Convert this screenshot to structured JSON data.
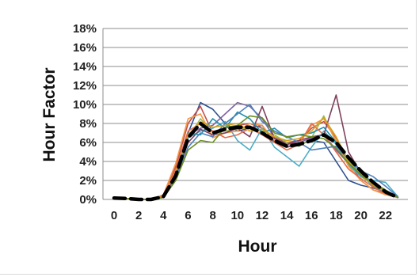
{
  "chart_data": {
    "type": "line",
    "xlabel": "Hour",
    "ylabel": "Hour Factor",
    "x": [
      0,
      1,
      2,
      3,
      4,
      5,
      6,
      7,
      8,
      9,
      10,
      11,
      12,
      13,
      14,
      15,
      16,
      17,
      18,
      19,
      20,
      21,
      22,
      23
    ],
    "x_tick_labels": [
      "0",
      "2",
      "4",
      "6",
      "8",
      "10",
      "12",
      "14",
      "16",
      "18",
      "20",
      "22"
    ],
    "y_tick_labels": [
      "0%",
      "2%",
      "4%",
      "6%",
      "8%",
      "10%",
      "12%",
      "14%",
      "16%",
      "18%"
    ],
    "ylim": [
      0,
      18
    ],
    "grid": "horizontal",
    "legend": "none",
    "series": [
      {
        "color": "#2e4f8f",
        "style": "solid",
        "values": [
          0.1,
          0.1,
          0,
          0,
          0.3,
          2.5,
          7.0,
          10.2,
          9.5,
          8.0,
          7.2,
          7.5,
          7.8,
          6.0,
          5.5,
          5.8,
          6.2,
          6.0,
          4.0,
          2.0,
          1.5,
          1.2,
          0.8,
          0.2
        ]
      },
      {
        "color": "#c0504d",
        "style": "solid",
        "values": [
          0.1,
          0.1,
          0,
          0,
          0.3,
          3.5,
          8.0,
          9.8,
          7.0,
          7.5,
          7.8,
          8.0,
          7.5,
          6.5,
          6.0,
          6.2,
          7.5,
          8.2,
          6.5,
          4.0,
          2.0,
          1.0,
          0.6,
          0.2
        ]
      },
      {
        "color": "#9bbb59",
        "style": "solid",
        "values": [
          0.1,
          0.1,
          0,
          0,
          0.3,
          2.8,
          6.5,
          8.5,
          7.0,
          7.2,
          7.4,
          7.6,
          7.2,
          6.8,
          6.0,
          5.6,
          6.5,
          8.8,
          6.0,
          3.8,
          2.4,
          1.6,
          0.9,
          0.2
        ]
      },
      {
        "color": "#8064a2",
        "style": "solid",
        "values": [
          0.1,
          0.1,
          0,
          0,
          0.2,
          3.0,
          6.8,
          7.5,
          7.8,
          9.0,
          10.2,
          9.8,
          8.5,
          6.5,
          5.8,
          6.0,
          6.5,
          6.8,
          5.2,
          3.8,
          2.5,
          1.8,
          1.0,
          0.2
        ]
      },
      {
        "color": "#4bacc6",
        "style": "solid",
        "values": [
          0.1,
          0.1,
          0,
          0,
          0.3,
          2.6,
          6.5,
          7.2,
          7.5,
          8.2,
          6.2,
          5.2,
          7.5,
          5.5,
          4.5,
          3.5,
          5.5,
          7.2,
          5.8,
          3.6,
          2.4,
          2.0,
          1.8,
          0.3
        ]
      },
      {
        "color": "#f79646",
        "style": "solid",
        "values": [
          0.1,
          0.1,
          0,
          0,
          0.5,
          3.8,
          8.5,
          9.0,
          6.5,
          7.0,
          7.2,
          8.0,
          7.8,
          6.2,
          5.6,
          6.0,
          7.8,
          8.5,
          6.2,
          3.5,
          2.0,
          1.0,
          0.5,
          0.2
        ]
      },
      {
        "color": "#7f3f5b",
        "style": "solid",
        "values": [
          0.1,
          0.1,
          0,
          0,
          0.3,
          2.4,
          6.0,
          7.4,
          6.8,
          7.0,
          7.5,
          6.6,
          9.8,
          6.4,
          5.8,
          6.2,
          6.6,
          6.8,
          11.0,
          5.0,
          2.8,
          1.6,
          0.8,
          0.2
        ]
      },
      {
        "color": "#1f8fb0",
        "style": "solid",
        "values": [
          0.1,
          0.1,
          0,
          0,
          0.3,
          3.0,
          7.0,
          6.8,
          8.5,
          7.5,
          9.2,
          8.5,
          7.0,
          7.5,
          6.5,
          6.8,
          7.0,
          7.6,
          6.0,
          4.2,
          2.6,
          1.4,
          0.7,
          0.2
        ]
      },
      {
        "color": "#e46c4a",
        "style": "solid",
        "values": [
          0.1,
          0.1,
          0,
          0,
          0.4,
          3.2,
          7.2,
          8.0,
          7.2,
          6.5,
          6.8,
          7.5,
          6.8,
          6.0,
          5.2,
          5.8,
          8.0,
          6.8,
          5.0,
          3.2,
          2.2,
          1.3,
          0.6,
          0.2
        ]
      },
      {
        "color": "#4f81bd",
        "style": "solid",
        "values": [
          0.1,
          0.1,
          0,
          0,
          0.3,
          2.2,
          5.5,
          7.0,
          6.6,
          8.0,
          9.0,
          10.0,
          8.2,
          7.2,
          6.6,
          6.0,
          5.2,
          5.4,
          5.6,
          4.2,
          3.0,
          2.4,
          1.4,
          0.3
        ]
      },
      {
        "color": "#d4a017",
        "style": "solid",
        "values": [
          0.1,
          0.1,
          0,
          0,
          0.3,
          2.9,
          6.8,
          8.2,
          7.6,
          7.8,
          8.0,
          7.2,
          7.4,
          6.6,
          6.2,
          6.4,
          7.2,
          8.6,
          6.6,
          4.0,
          2.6,
          1.5,
          0.8,
          0.2
        ]
      },
      {
        "color": "#6b8e23",
        "style": "solid",
        "values": [
          0.1,
          0.1,
          0,
          0,
          0.2,
          2.0,
          5.2,
          6.2,
          6.0,
          7.6,
          7.8,
          8.8,
          8.6,
          7.0,
          6.6,
          6.8,
          6.6,
          6.4,
          5.4,
          3.8,
          2.6,
          1.7,
          1.0,
          0.2
        ]
      },
      {
        "color": "#000000",
        "style": "dashed",
        "values": [
          0.15,
          0.1,
          0,
          0,
          0.3,
          2.5,
          6.5,
          8.0,
          7.0,
          7.4,
          7.6,
          7.6,
          7.0,
          6.2,
          5.6,
          5.8,
          6.2,
          6.8,
          6.0,
          4.4,
          3.0,
          1.8,
          0.8,
          0.2
        ]
      }
    ]
  }
}
